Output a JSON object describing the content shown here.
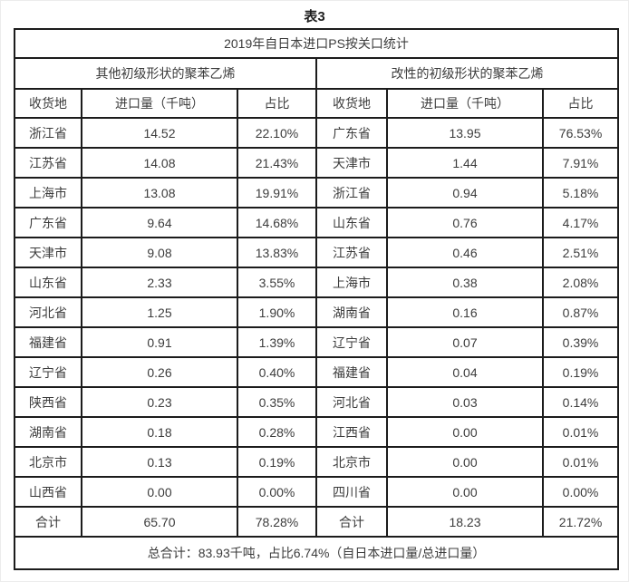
{
  "page_title": "表3",
  "table": {
    "title": "2019年自日本进口PS按关口统计",
    "group_headers": [
      "其他初级形状的聚苯乙烯",
      "改性的初级形状的聚苯乙烯"
    ],
    "columns": [
      "收货地",
      "进口量（千吨）",
      "占比"
    ],
    "rows": [
      {
        "left": [
          "浙江省",
          "14.52",
          "22.10%"
        ],
        "right": [
          "广东省",
          "13.95",
          "76.53%"
        ]
      },
      {
        "left": [
          "江苏省",
          "14.08",
          "21.43%"
        ],
        "right": [
          "天津市",
          "1.44",
          "7.91%"
        ]
      },
      {
        "left": [
          "上海市",
          "13.08",
          "19.91%"
        ],
        "right": [
          "浙江省",
          "0.94",
          "5.18%"
        ]
      },
      {
        "left": [
          "广东省",
          "9.64",
          "14.68%"
        ],
        "right": [
          "山东省",
          "0.76",
          "4.17%"
        ]
      },
      {
        "left": [
          "天津市",
          "9.08",
          "13.83%"
        ],
        "right": [
          "江苏省",
          "0.46",
          "2.51%"
        ]
      },
      {
        "left": [
          "山东省",
          "2.33",
          "3.55%"
        ],
        "right": [
          "上海市",
          "0.38",
          "2.08%"
        ]
      },
      {
        "left": [
          "河北省",
          "1.25",
          "1.90%"
        ],
        "right": [
          "湖南省",
          "0.16",
          "0.87%"
        ]
      },
      {
        "left": [
          "福建省",
          "0.91",
          "1.39%"
        ],
        "right": [
          "辽宁省",
          "0.07",
          "0.39%"
        ]
      },
      {
        "left": [
          "辽宁省",
          "0.26",
          "0.40%"
        ],
        "right": [
          "福建省",
          "0.04",
          "0.19%"
        ]
      },
      {
        "left": [
          "陕西省",
          "0.23",
          "0.35%"
        ],
        "right": [
          "河北省",
          "0.03",
          "0.14%"
        ]
      },
      {
        "left": [
          "湖南省",
          "0.18",
          "0.28%"
        ],
        "right": [
          "江西省",
          "0.00",
          "0.01%"
        ]
      },
      {
        "left": [
          "北京市",
          "0.13",
          "0.19%"
        ],
        "right": [
          "北京市",
          "0.00",
          "0.01%"
        ]
      },
      {
        "left": [
          "山西省",
          "0.00",
          "0.00%"
        ],
        "right": [
          "四川省",
          "0.00",
          "0.00%"
        ]
      }
    ],
    "total_row": {
      "left": [
        "合计",
        "65.70",
        "78.28%"
      ],
      "right": [
        "合计",
        "18.23",
        "21.72%"
      ]
    },
    "grand_total": "总合计：83.93千吨，占比6.74%（自日本进口量/总进口量）"
  },
  "colors": {
    "border": "#1c1c1c",
    "text": "#3c3c3c",
    "header_text": "#1e1e1e",
    "background": "#ffffff"
  }
}
